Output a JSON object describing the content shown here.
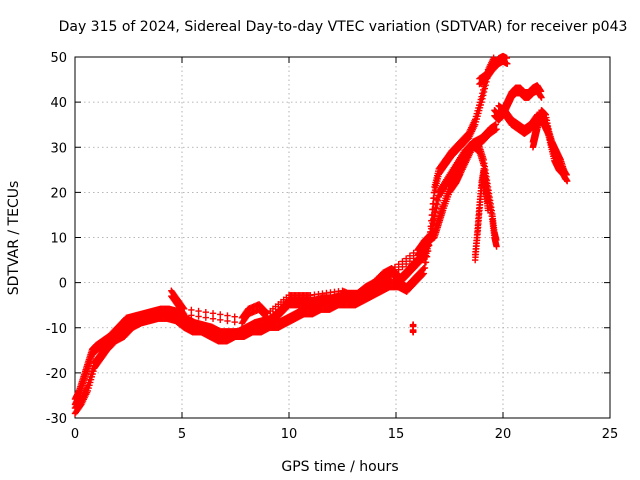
{
  "chart_data": {
    "type": "scatter",
    "title": "Day 315 of 2024, Sidereal Day-to-day VTEC variation (SDTVAR) for receiver p043",
    "xlabel": "GPS time / hours",
    "ylabel": "SDTVAR / TECUs",
    "xlim": [
      0,
      25
    ],
    "ylim": [
      -30,
      50
    ],
    "xticks": [
      "0",
      "5",
      "10",
      "15",
      "20",
      "25"
    ],
    "yticks": [
      "-30",
      "-20",
      "-10",
      "0",
      "10",
      "20",
      "30",
      "40",
      "50"
    ],
    "grid": true,
    "legend": "none",
    "marker": "plus",
    "color": "#ff0000",
    "series": [
      {
        "segments": [
          [
            [
              0.0,
              -27
            ],
            [
              0.2,
              -25
            ],
            [
              0.4,
              -22
            ],
            [
              0.6,
              -19
            ],
            [
              0.8,
              -16
            ],
            [
              1.0,
              -15
            ],
            [
              1.3,
              -14
            ],
            [
              1.6,
              -13
            ],
            [
              2.0,
              -11
            ],
            [
              2.4,
              -9
            ],
            [
              2.8,
              -8.5
            ],
            [
              3.2,
              -8
            ],
            [
              3.6,
              -7.5
            ],
            [
              4.0,
              -7
            ],
            [
              4.4,
              -7
            ],
            [
              4.8,
              -7.5
            ],
            [
              5.2,
              -9
            ],
            [
              5.6,
              -10
            ],
            [
              6.0,
              -10.5
            ],
            [
              6.4,
              -11
            ],
            [
              6.8,
              -12
            ],
            [
              7.2,
              -12
            ],
            [
              7.6,
              -12
            ],
            [
              8.0,
              -11
            ],
            [
              8.4,
              -10
            ],
            [
              8.8,
              -9.5
            ],
            [
              9.2,
              -9
            ],
            [
              9.6,
              -7
            ],
            [
              10.0,
              -5
            ],
            [
              10.4,
              -5
            ],
            [
              10.8,
              -5
            ],
            [
              11.2,
              -5
            ],
            [
              11.6,
              -4.5
            ],
            [
              12.0,
              -4.5
            ],
            [
              12.4,
              -4
            ],
            [
              12.8,
              -3.5
            ],
            [
              13.2,
              -3.5
            ],
            [
              13.6,
              -2
            ],
            [
              14.0,
              -1
            ],
            [
              14.4,
              1
            ],
            [
              14.8,
              2
            ],
            [
              15.2,
              0
            ],
            [
              15.6,
              2
            ],
            [
              16.0,
              4
            ],
            [
              16.4,
              6
            ],
            [
              16.6,
              10
            ],
            [
              16.8,
              20
            ],
            [
              17.0,
              24
            ],
            [
              17.3,
              26
            ],
            [
              17.6,
              28
            ],
            [
              18.0,
              30
            ],
            [
              18.4,
              32
            ],
            [
              18.7,
              35
            ],
            [
              19.0,
              40
            ],
            [
              19.3,
              46
            ],
            [
              19.6,
              49
            ]
          ],
          [
            [
              0.0,
              -29
            ],
            [
              0.3,
              -27
            ],
            [
              0.6,
              -24
            ],
            [
              0.9,
              -19
            ],
            [
              1.2,
              -17
            ],
            [
              1.5,
              -15
            ],
            [
              1.9,
              -13
            ],
            [
              2.3,
              -12
            ],
            [
              2.7,
              -10
            ],
            [
              3.1,
              -9
            ],
            [
              3.5,
              -8.5
            ],
            [
              3.9,
              -8
            ],
            [
              4.3,
              -8
            ],
            [
              4.7,
              -8.5
            ],
            [
              5.1,
              -10
            ],
            [
              5.5,
              -11
            ],
            [
              5.9,
              -11
            ],
            [
              6.3,
              -12
            ],
            [
              6.7,
              -13
            ],
            [
              7.1,
              -13
            ],
            [
              7.5,
              -12
            ],
            [
              7.9,
              -12
            ],
            [
              8.3,
              -11
            ],
            [
              8.7,
              -11
            ],
            [
              9.1,
              -10
            ],
            [
              9.5,
              -10
            ],
            [
              9.9,
              -9
            ],
            [
              10.3,
              -8
            ],
            [
              10.7,
              -7
            ],
            [
              11.1,
              -7
            ],
            [
              11.5,
              -6
            ],
            [
              11.9,
              -6
            ],
            [
              12.3,
              -5
            ],
            [
              12.7,
              -5
            ],
            [
              13.1,
              -5
            ],
            [
              13.5,
              -4
            ],
            [
              13.9,
              -3
            ],
            [
              14.3,
              -2
            ],
            [
              14.7,
              -1
            ],
            [
              15.1,
              -1
            ],
            [
              15.5,
              -2
            ],
            [
              15.9,
              0
            ],
            [
              16.3,
              2
            ],
            [
              16.7,
              12
            ],
            [
              17.0,
              19
            ],
            [
              17.4,
              22
            ],
            [
              17.8,
              25
            ],
            [
              18.2,
              28
            ],
            [
              18.6,
              30
            ],
            [
              19.0,
              31
            ],
            [
              19.4,
              33
            ],
            [
              19.7,
              34
            ]
          ],
          [
            [
              4.5,
              -3
            ],
            [
              4.8,
              -5
            ],
            [
              5.1,
              -7
            ],
            [
              7.8,
              -9
            ],
            [
              8.1,
              -7
            ],
            [
              8.6,
              -6
            ],
            [
              9.0,
              -8
            ],
            [
              10.0,
              -4
            ],
            [
              10.5,
              -4
            ],
            [
              11.0,
              -4
            ],
            [
              12.5,
              -3
            ],
            [
              13.0,
              -4
            ],
            [
              13.5,
              -3
            ],
            [
              14.2,
              0
            ],
            [
              14.6,
              1
            ],
            [
              16.0,
              6
            ],
            [
              16.3,
              8
            ],
            [
              16.5,
              9
            ],
            [
              16.8,
              10
            ],
            [
              17.0,
              13
            ],
            [
              17.2,
              16
            ],
            [
              17.5,
              20
            ],
            [
              17.8,
              22
            ],
            [
              18.0,
              24
            ],
            [
              18.3,
              27
            ],
            [
              18.6,
              30
            ],
            [
              18.9,
              29
            ],
            [
              19.1,
              26
            ],
            [
              19.3,
              20
            ],
            [
              19.5,
              14
            ],
            [
              19.6,
              10
            ],
            [
              19.7,
              8
            ]
          ],
          [
            [
              18.7,
              5
            ],
            [
              18.8,
              10
            ],
            [
              18.9,
              16
            ],
            [
              19.0,
              21
            ],
            [
              19.1,
              24
            ],
            [
              19.2,
              20
            ],
            [
              19.3,
              16
            ]
          ],
          [
            [
              15.8,
              -10.5
            ],
            [
              15.8,
              -11
            ]
          ],
          [
            [
              18.9,
              44
            ],
            [
              19.2,
              45
            ],
            [
              19.5,
              47
            ],
            [
              19.8,
              48.5
            ],
            [
              20.0,
              49
            ],
            [
              20.2,
              48.5
            ]
          ],
          [
            [
              19.6,
              37
            ],
            [
              19.8,
              36
            ],
            [
              20.0,
              37
            ],
            [
              20.2,
              39
            ],
            [
              20.4,
              41
            ],
            [
              20.6,
              42
            ],
            [
              20.8,
              42
            ],
            [
              21.0,
              41
            ],
            [
              21.2,
              41
            ],
            [
              21.4,
              42
            ],
            [
              21.6,
              42.5
            ],
            [
              21.8,
              41
            ]
          ],
          [
            [
              19.8,
              38
            ],
            [
              20.1,
              37
            ],
            [
              20.4,
              35
            ],
            [
              20.7,
              34
            ],
            [
              21.0,
              33
            ],
            [
              21.3,
              34
            ],
            [
              21.6,
              36
            ],
            [
              21.9,
              35
            ],
            [
              22.1,
              33
            ],
            [
              22.3,
              30
            ],
            [
              22.5,
              28
            ],
            [
              22.7,
              26
            ],
            [
              22.9,
              23
            ]
          ],
          [
            [
              21.4,
              30
            ],
            [
              21.5,
              32
            ],
            [
              21.6,
              34
            ],
            [
              21.8,
              37
            ],
            [
              22.0,
              36
            ],
            [
              22.2,
              31
            ],
            [
              22.4,
              27
            ],
            [
              22.6,
              25
            ],
            [
              22.8,
              24
            ],
            [
              23.0,
              22.5
            ]
          ]
        ]
      }
    ]
  }
}
